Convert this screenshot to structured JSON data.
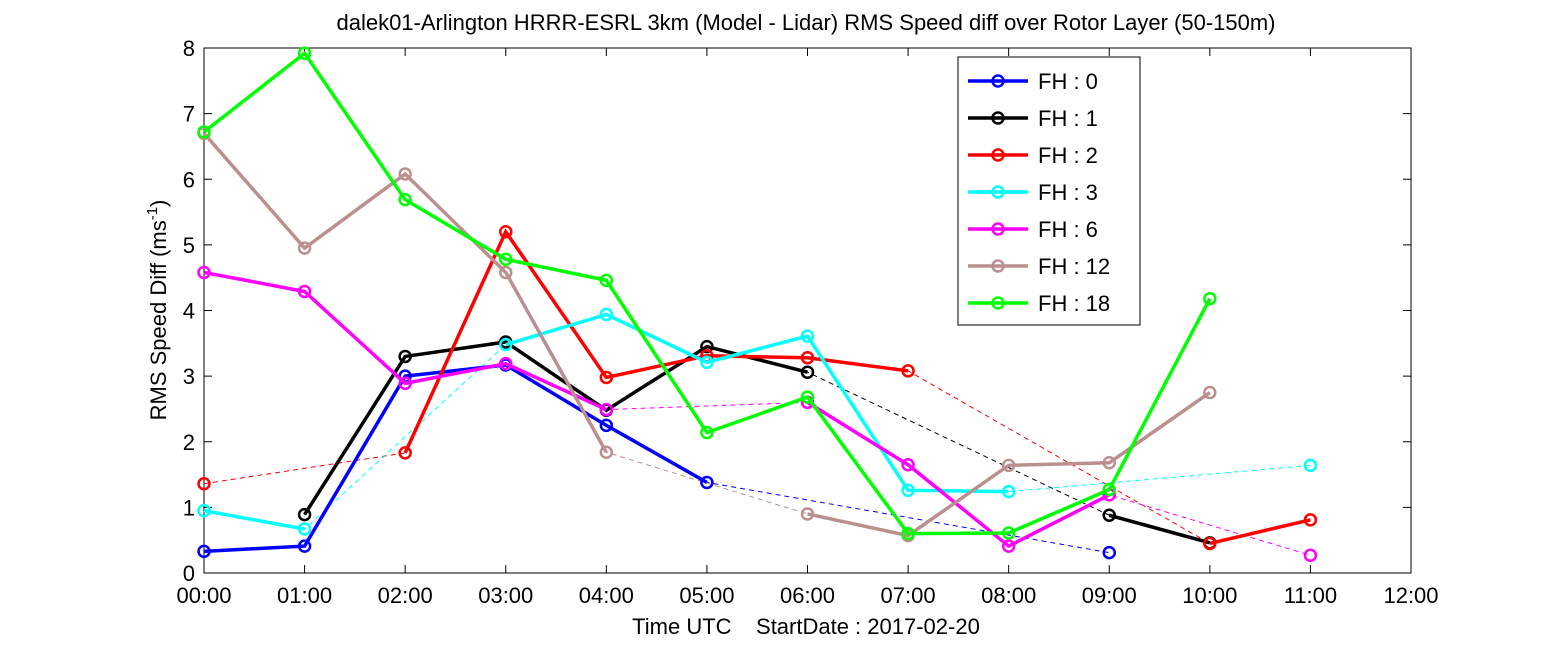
{
  "chart_data": {
    "type": "line",
    "title": "dalek01-Arlington HRRR-ESRL 3km (Model - Lidar) RMS Speed diff over Rotor Layer (50-150m)",
    "xlabel": "Time UTC    StartDate : 2017-02-20",
    "ylabel": {
      "main": "RMS Speed Diff (ms",
      "sup": "-1",
      "tail": ")"
    },
    "xlim": [
      0,
      12
    ],
    "ylim": [
      0,
      8
    ],
    "xticks": [
      {
        "v": 0,
        "label": "00:00"
      },
      {
        "v": 1,
        "label": "01:00"
      },
      {
        "v": 2,
        "label": "02:00"
      },
      {
        "v": 3,
        "label": "03:00"
      },
      {
        "v": 4,
        "label": "04:00"
      },
      {
        "v": 5,
        "label": "05:00"
      },
      {
        "v": 6,
        "label": "06:00"
      },
      {
        "v": 7,
        "label": "07:00"
      },
      {
        "v": 8,
        "label": "08:00"
      },
      {
        "v": 9,
        "label": "09:00"
      },
      {
        "v": 10,
        "label": "10:00"
      },
      {
        "v": 11,
        "label": "11:00"
      },
      {
        "v": 12,
        "label": "12:00"
      }
    ],
    "yticks": [
      {
        "v": 0,
        "label": "0"
      },
      {
        "v": 1,
        "label": "1"
      },
      {
        "v": 2,
        "label": "2"
      },
      {
        "v": 3,
        "label": "3"
      },
      {
        "v": 4,
        "label": "4"
      },
      {
        "v": 5,
        "label": "5"
      },
      {
        "v": 6,
        "label": "6"
      },
      {
        "v": 7,
        "label": "7"
      },
      {
        "v": 8,
        "label": "8"
      }
    ],
    "grid": false,
    "legend_position": "top-right",
    "series": [
      {
        "name": "FH : 0",
        "color": "#0000ff",
        "points": [
          [
            0,
            0.33
          ],
          [
            1,
            0.41
          ],
          [
            2,
            3.0
          ],
          [
            3,
            3.17
          ],
          [
            4,
            2.25
          ],
          [
            5,
            1.38
          ],
          [
            9,
            0.31
          ]
        ]
      },
      {
        "name": "FH : 1",
        "color": "#000000",
        "points": [
          [
            1,
            0.89
          ],
          [
            2,
            3.3
          ],
          [
            3,
            3.52
          ],
          [
            4,
            2.48
          ],
          [
            5,
            3.45
          ],
          [
            6,
            3.06
          ],
          [
            9,
            0.88
          ],
          [
            10,
            0.46
          ]
        ]
      },
      {
        "name": "FH : 2",
        "color": "#ff0000",
        "points": [
          [
            0,
            1.36
          ],
          [
            2,
            1.83
          ],
          [
            3,
            5.2
          ],
          [
            4,
            2.98
          ],
          [
            5,
            3.31
          ],
          [
            6,
            3.28
          ],
          [
            7,
            3.08
          ],
          [
            10,
            0.45
          ],
          [
            11,
            0.81
          ]
        ]
      },
      {
        "name": "FH : 3",
        "color": "#00ffff",
        "points": [
          [
            0,
            0.95
          ],
          [
            1,
            0.67
          ],
          [
            3,
            3.48
          ],
          [
            4,
            3.94
          ],
          [
            5,
            3.21
          ],
          [
            6,
            3.61
          ],
          [
            7,
            1.26
          ],
          [
            8,
            1.24
          ],
          [
            11,
            1.64
          ]
        ]
      },
      {
        "name": "FH : 6",
        "color": "#ff00ff",
        "points": [
          [
            0,
            4.58
          ],
          [
            1,
            4.29
          ],
          [
            2,
            2.89
          ],
          [
            3,
            3.19
          ],
          [
            4,
            2.49
          ],
          [
            6,
            2.6
          ],
          [
            7,
            1.65
          ],
          [
            8,
            0.41
          ],
          [
            9,
            1.19
          ],
          [
            11,
            0.27
          ]
        ]
      },
      {
        "name": "FH : 12",
        "color": "#bc8f8f",
        "points": [
          [
            0,
            6.7
          ],
          [
            1,
            4.95
          ],
          [
            2,
            6.08
          ],
          [
            3,
            4.58
          ],
          [
            4,
            1.84
          ],
          [
            6,
            0.9
          ],
          [
            7,
            0.57
          ],
          [
            8,
            1.64
          ],
          [
            9,
            1.68
          ],
          [
            10,
            2.75
          ]
        ]
      },
      {
        "name": "FH : 18",
        "color": "#00ff00",
        "points": [
          [
            0,
            6.72
          ],
          [
            1,
            7.92
          ],
          [
            2,
            5.69
          ],
          [
            3,
            4.78
          ],
          [
            4,
            4.46
          ],
          [
            5,
            2.14
          ],
          [
            6,
            2.68
          ],
          [
            7,
            0.6
          ],
          [
            8,
            0.61
          ],
          [
            9,
            1.27
          ],
          [
            10,
            4.18
          ]
        ]
      }
    ]
  }
}
